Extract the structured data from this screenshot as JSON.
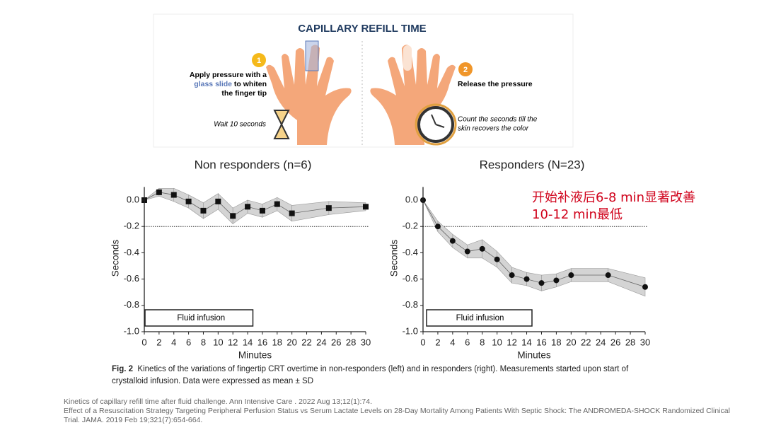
{
  "infographic": {
    "title": "CAPILLARY REFILL TIME",
    "step1_number": "1",
    "step1_text_a": "Apply pressure with a",
    "step1_highlight": "glass slide",
    "step1_text_b": "to whiten",
    "step1_text_c": "the finger tip",
    "wait_text": "Wait 10 seconds",
    "step2_number": "2",
    "step2_text": "Release the pressure",
    "count_text_a": "Count the seconds till the",
    "count_text_b": "skin recovers the color"
  },
  "chart_data": [
    {
      "type": "line",
      "title": "Non responders (n=6)",
      "xlabel": "Minutes",
      "ylabel": "Seconds",
      "x": [
        0,
        2,
        4,
        6,
        8,
        10,
        12,
        14,
        16,
        18,
        20,
        25,
        30
      ],
      "series": [
        {
          "values": [
            0,
            0.06,
            0.04,
            -0.01,
            -0.08,
            -0.01,
            -0.12,
            -0.05,
            -0.08,
            -0.03,
            -0.1,
            -0.06,
            -0.05
          ],
          "errors": [
            0,
            0.03,
            0.05,
            0.05,
            0.06,
            0.06,
            0.06,
            0.05,
            0.05,
            0.05,
            0.06,
            0.05,
            0.03
          ],
          "color": "#111111",
          "band_color": "#d4d4d4",
          "marker": "square"
        }
      ],
      "xlim": [
        0,
        30
      ],
      "xticks": [
        0,
        2,
        4,
        6,
        8,
        10,
        12,
        14,
        16,
        18,
        20,
        22,
        24,
        26,
        28,
        30
      ],
      "ylim": [
        -1,
        0.1
      ],
      "yticks": [
        {
          "value": -1,
          "label": "-1.0"
        },
        -0.8,
        -0.6,
        -0.4,
        -0.2,
        {
          "value": 0,
          "label": "0.0"
        }
      ],
      "reference_line": -0.2,
      "annotation": "Fluid infusion"
    },
    {
      "type": "line",
      "title": "Responders  (N=23)",
      "xlabel": "Minutes",
      "ylabel": "Seconds",
      "x": [
        0,
        2,
        4,
        6,
        8,
        10,
        12,
        14,
        16,
        18,
        20,
        25,
        30
      ],
      "series": [
        {
          "values": [
            0,
            -0.2,
            -0.31,
            -0.39,
            -0.37,
            -0.45,
            -0.57,
            -0.6,
            -0.63,
            -0.61,
            -0.57,
            -0.57,
            -0.66
          ],
          "errors": [
            0,
            0.04,
            0.05,
            0.05,
            0.07,
            0.06,
            0.06,
            0.05,
            0.06,
            0.05,
            0.05,
            0.05,
            0.07
          ],
          "color": "#111111",
          "band_color": "#d4d4d4",
          "marker": "circle"
        }
      ],
      "xlim": [
        0,
        30
      ],
      "xticks": [
        0,
        2,
        4,
        6,
        8,
        10,
        12,
        14,
        16,
        18,
        20,
        22,
        24,
        26,
        28,
        30
      ],
      "ylim": [
        -1,
        0.1
      ],
      "yticks": [
        {
          "value": -1,
          "label": "-1.0"
        },
        -0.8,
        -0.6,
        -0.4,
        -0.2,
        {
          "value": 0,
          "label": "0.0"
        }
      ],
      "reference_line": -0.2,
      "annotation": "Fluid infusion"
    }
  ],
  "note": {
    "line1": "开始补液后6-8 min显著改善",
    "line2": "10-12 min最低"
  },
  "caption": {
    "label": "Fig. 2",
    "text": "Kinetics of the variations of fingertip CRT overtime in non-responders (left) and in responders (right). Measurements started upon start of crystalloid infusion. Data were expressed as mean ± SD"
  },
  "references": [
    "Kinetics of capillary refill time after fluid challenge. Ann Intensive Care . 2022 Aug 13;12(1):74.",
    "Effect of a Resuscitation Strategy Targeting Peripheral Perfusion Status vs Serum Lactate Levels on 28-Day Mortality Among Patients With Septic Shock: The ANDROMEDA-SHOCK Randomized Clinical Trial. JAMA. 2019 Feb 19;321(7):654-664."
  ]
}
